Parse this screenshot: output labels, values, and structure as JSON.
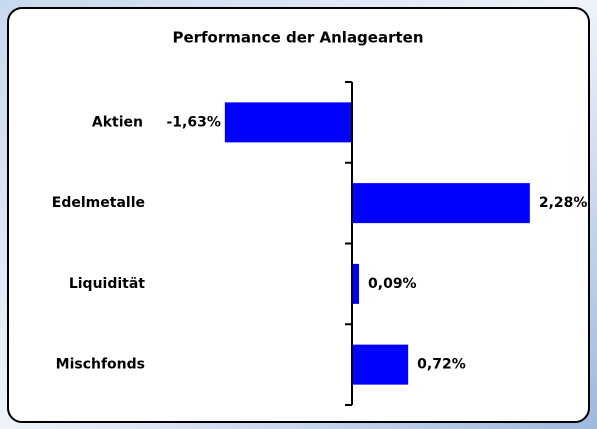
{
  "chart_data": {
    "type": "bar",
    "orientation": "horizontal",
    "title": "Performance der Anlagearten",
    "categories": [
      "Aktien",
      "Edelmetalle",
      "Liquidität",
      "Mischfonds"
    ],
    "values": [
      -1.63,
      2.28,
      0.09,
      0.72
    ],
    "value_labels": [
      "-1,63%",
      "2,28%",
      "0,09%",
      "0,72%"
    ],
    "color": "#0000ff",
    "xlim": [
      -3,
      3
    ]
  }
}
